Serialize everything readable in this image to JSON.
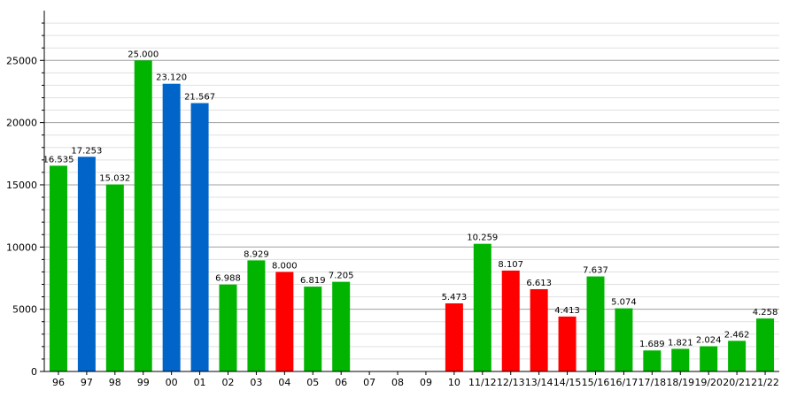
{
  "chart_data": {
    "type": "bar",
    "categories": [
      "96",
      "97",
      "98",
      "99",
      "00",
      "01",
      "02",
      "03",
      "04",
      "05",
      "06",
      "07",
      "08",
      "09",
      "10",
      "11/12",
      "12/13",
      "13/14",
      "14/15",
      "15/16",
      "16/17",
      "17/18",
      "18/19",
      "19/20",
      "20/21",
      "21/22"
    ],
    "values": [
      16535,
      17253,
      15032,
      25000,
      23120,
      21567,
      6988,
      8929,
      8000,
      6819,
      7205,
      null,
      null,
      null,
      5473,
      10259,
      8107,
      6613,
      4413,
      7637,
      5074,
      1689,
      1821,
      2024,
      2462,
      4258
    ],
    "value_labels": [
      "16.535",
      "17.253",
      "15.032",
      "25.000",
      "23.120",
      "21.567",
      "6.988",
      "8.929",
      "8.000",
      "6.819",
      "7.205",
      "",
      "",
      "",
      "5.473",
      "10.259",
      "8.107",
      "6.613",
      "4.413",
      "7.637",
      "5.074",
      "1.689",
      "1.821",
      "2.024",
      "2.462",
      "4.258"
    ],
    "bar_colors": [
      "#00b400",
      "#0064c8",
      "#00b400",
      "#00b400",
      "#0064c8",
      "#0064c8",
      "#00b400",
      "#00b400",
      "#ff0000",
      "#00b400",
      "#00b400",
      "#00b400",
      "#00b400",
      "#00b400",
      "#ff0000",
      "#00b400",
      "#ff0000",
      "#ff0000",
      "#ff0000",
      "#00b400",
      "#00b400",
      "#00b400",
      "#00b400",
      "#00b400",
      "#00b400",
      "#00b400"
    ],
    "y_ticks": [
      0,
      5000,
      10000,
      15000,
      20000,
      25000
    ],
    "ylim": [
      0,
      29000
    ],
    "minor_tick_step": 1000,
    "grid": true,
    "title": "",
    "xlabel": "",
    "ylabel": ""
  },
  "colors": {
    "green": "#00b400",
    "blue": "#0064c8",
    "red": "#ff0000",
    "major_grid": "#a0a0a0",
    "minor_grid": "#e0e0e0"
  }
}
